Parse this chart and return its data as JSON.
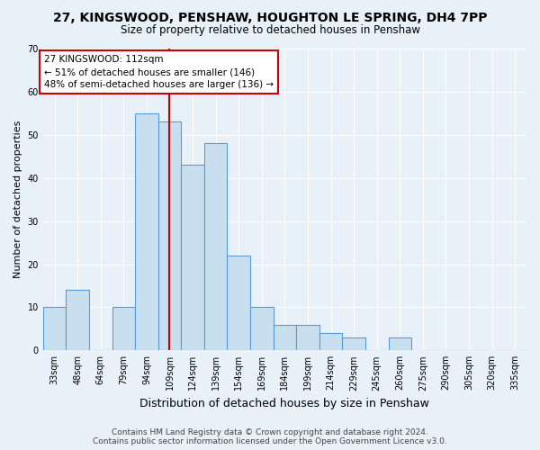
{
  "title": "27, KINGSWOOD, PENSHAW, HOUGHTON LE SPRING, DH4 7PP",
  "subtitle": "Size of property relative to detached houses in Penshaw",
  "xlabel": "Distribution of detached houses by size in Penshaw",
  "ylabel": "Number of detached properties",
  "bin_labels": [
    "33sqm",
    "48sqm",
    "64sqm",
    "79sqm",
    "94sqm",
    "109sqm",
    "124sqm",
    "139sqm",
    "154sqm",
    "169sqm",
    "184sqm",
    "199sqm",
    "214sqm",
    "229sqm",
    "245sqm",
    "260sqm",
    "275sqm",
    "290sqm",
    "305sqm",
    "320sqm",
    "335sqm"
  ],
  "bar_heights": [
    10,
    14,
    0,
    10,
    55,
    53,
    43,
    48,
    22,
    10,
    6,
    6,
    4,
    3,
    0,
    3,
    0,
    0,
    0,
    0,
    0
  ],
  "bar_color": "#c8dff0",
  "bar_edge_color": "#5b9bd5",
  "vline_x_index": 5,
  "vline_color": "#cc0000",
  "annotation_text": "27 KINGSWOOD: 112sqm\n← 51% of detached houses are smaller (146)\n48% of semi-detached houses are larger (136) →",
  "annotation_box_color": "#ffffff",
  "annotation_box_edge": "#cc0000",
  "ylim": [
    0,
    70
  ],
  "yticks": [
    0,
    10,
    20,
    30,
    40,
    50,
    60,
    70
  ],
  "footer_line1": "Contains HM Land Registry data © Crown copyright and database right 2024.",
  "footer_line2": "Contains public sector information licensed under the Open Government Licence v3.0.",
  "bg_color": "#e8f0f8",
  "grid_color": "#ffffff",
  "title_fontsize": 10,
  "subtitle_fontsize": 8.5,
  "ylabel_fontsize": 8,
  "xlabel_fontsize": 9,
  "tick_fontsize": 7,
  "footer_fontsize": 6.5
}
